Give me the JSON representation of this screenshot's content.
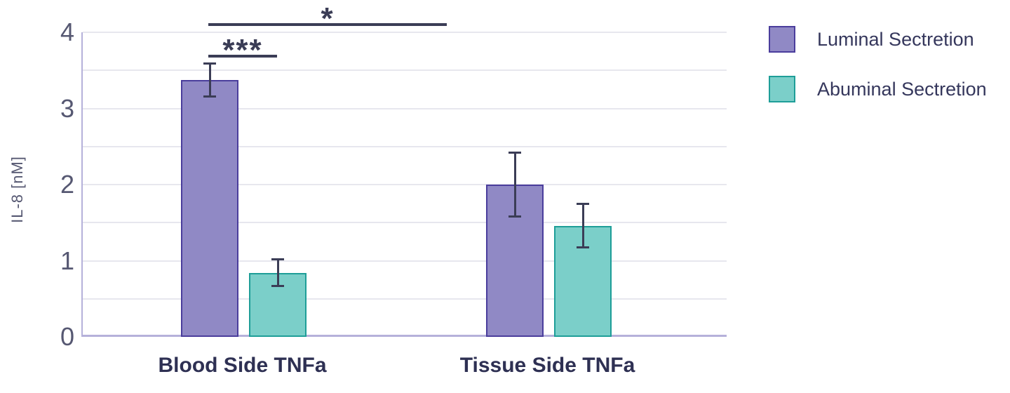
{
  "chart_data": {
    "type": "bar",
    "title": "",
    "categories": [
      "Blood Side TNFa",
      "Tissue Side TNFa"
    ],
    "series": [
      {
        "name": "Luminal Sectretion",
        "values": [
          3.37,
          2.0
        ],
        "errors": [
          0.23,
          0.43
        ],
        "fill": "#9089C5",
        "border": "#4A3D9C"
      },
      {
        "name": "Abuminal Sectretion",
        "values": [
          0.84,
          1.46
        ],
        "errors": [
          0.19,
          0.3
        ],
        "fill": "#7BCFC9",
        "border": "#1E9E98"
      }
    ],
    "xlabel": "",
    "ylabel": "IL-8 [nM]",
    "ylim": [
      0,
      4
    ],
    "yticks": [
      0,
      1,
      2,
      3,
      4
    ],
    "grid": "on",
    "grid_step": 0.5,
    "legend_position": "right",
    "annotations": [
      {
        "label": "***",
        "between": [
          "Blood Side TNFa: Luminal",
          "Blood Side TNFa: Abuminal"
        ]
      },
      {
        "label": "*",
        "between": [
          "Blood Side TNFa: Luminal",
          "Tissue Side TNFa"
        ]
      }
    ]
  },
  "colors": {
    "grid": "#E7E7EE",
    "axis": "#B5B1DA",
    "dark": "#3B3D56",
    "tick_text": "#565872",
    "category_text": "#2E3053",
    "legend_text": "#35375C",
    "background": "#FFFFFF"
  }
}
